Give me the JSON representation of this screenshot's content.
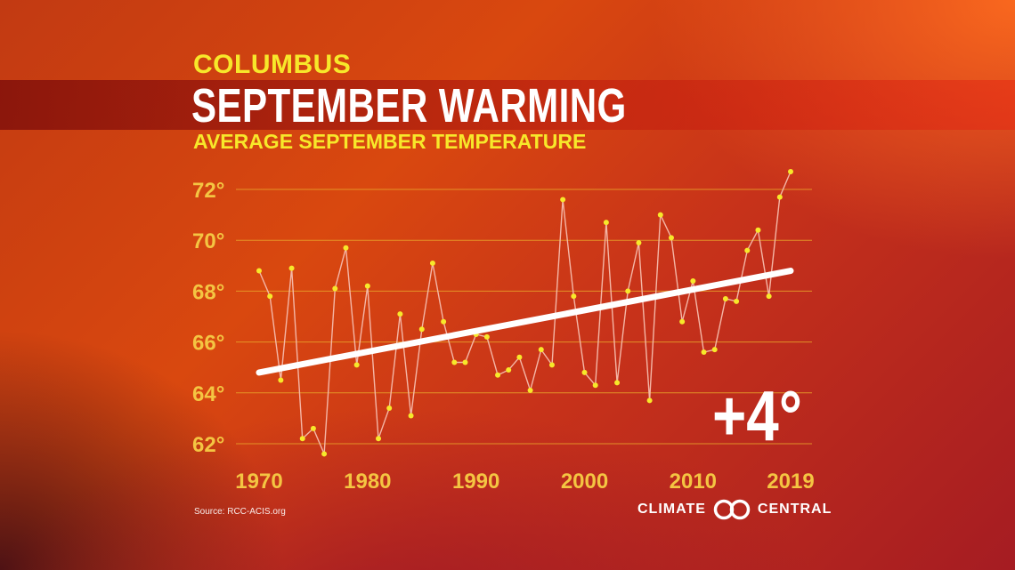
{
  "header": {
    "city": "COLUMBUS",
    "title": "SEPTEMBER WARMING",
    "subtitle": "AVERAGE SEPTEMBER TEMPERATURE"
  },
  "change_label": "+4°",
  "source": "Source: RCC-ACIS.org",
  "logo": {
    "left_word": "CLIMATE",
    "right_word": "CENTRAL"
  },
  "colors": {
    "accent_yellow": "#f7e82a",
    "tick_gold": "#f4c542",
    "grid": "#e8a22a",
    "series_line": "#f4b6a6",
    "trend_line": "#ffffff"
  },
  "chart_data": {
    "type": "line",
    "title": "AVERAGE SEPTEMBER TEMPERATURE",
    "xlabel": "",
    "ylabel": "",
    "xlim": [
      1970,
      2019
    ],
    "ylim": [
      62,
      72
    ],
    "x_ticks": [
      1970,
      1980,
      1990,
      2000,
      2010,
      2019
    ],
    "y_ticks": [
      62,
      64,
      66,
      68,
      70,
      72
    ],
    "y_tick_labels": [
      "62°",
      "64°",
      "66°",
      "68°",
      "70°",
      "72°"
    ],
    "grid": "horizontal",
    "series": [
      {
        "x": [
          1970,
          1971,
          1972,
          1973,
          1974,
          1975,
          1976,
          1977,
          1978,
          1979,
          1980,
          1981,
          1982,
          1983,
          1984,
          1985,
          1986,
          1987,
          1988,
          1989,
          1990,
          1991,
          1992,
          1993,
          1994,
          1995,
          1996,
          1997,
          1998,
          1999,
          2000,
          2001,
          2002,
          2003,
          2004,
          2005,
          2006,
          2007,
          2008,
          2009,
          2010,
          2011,
          2012,
          2013,
          2014,
          2015,
          2016,
          2017,
          2018,
          2019
        ],
        "y": [
          68.8,
          67.8,
          64.5,
          68.9,
          62.2,
          62.6,
          61.6,
          68.1,
          69.7,
          65.1,
          68.2,
          62.2,
          63.4,
          67.1,
          63.1,
          66.5,
          69.1,
          66.8,
          65.2,
          65.2,
          66.3,
          66.2,
          64.7,
          64.9,
          65.4,
          64.1,
          65.7,
          65.1,
          71.6,
          67.8,
          64.8,
          64.3,
          70.7,
          64.4,
          68.0,
          69.9,
          63.7,
          71.0,
          70.1,
          66.8,
          68.4,
          65.6,
          65.7,
          67.7,
          67.6,
          69.6,
          70.4,
          67.8,
          71.7,
          72.7
        ]
      },
      {
        "x": [
          1970,
          2019
        ],
        "y": [
          64.8,
          68.8
        ]
      }
    ]
  }
}
